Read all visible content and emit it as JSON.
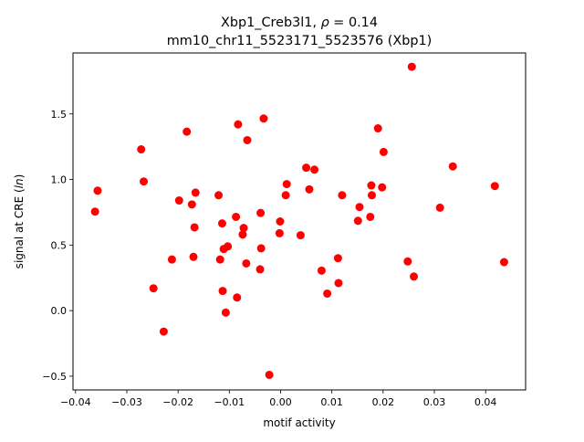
{
  "chart_data": {
    "type": "scatter",
    "title_line1": "Xbp1_Creb3l1, ",
    "title_rho": "ρ",
    "title_rho_value": " = 0.14",
    "title_line2": "mm10_chr11_5523171_5523576 (Xbp1)",
    "xlabel": "motif activity",
    "ylabel_prefix": "signal at CRE (",
    "ylabel_italic": "ln",
    "ylabel_suffix": ")",
    "xlim": [
      -0.0405,
      0.0478
    ],
    "ylim": [
      -0.605,
      1.965
    ],
    "xticks": [
      -0.04,
      -0.03,
      -0.02,
      -0.01,
      0.0,
      0.01,
      0.02,
      0.03,
      0.04
    ],
    "xtick_labels": [
      "−0.04",
      "−0.03",
      "−0.02",
      "−0.01",
      "0.00",
      "0.01",
      "0.02",
      "0.03",
      "0.04"
    ],
    "yticks": [
      -0.5,
      0.0,
      0.5,
      1.0,
      1.5
    ],
    "ytick_labels": [
      "−0.5",
      "0.0",
      "0.5",
      "1.0",
      "1.5"
    ],
    "grid": false,
    "marker_color": "#ff0000",
    "points": [
      {
        "x": -0.0362,
        "y": 0.755
      },
      {
        "x": -0.0357,
        "y": 0.915
      },
      {
        "x": -0.0272,
        "y": 1.23
      },
      {
        "x": -0.0267,
        "y": 0.985
      },
      {
        "x": -0.0248,
        "y": 0.17
      },
      {
        "x": -0.0228,
        "y": -0.16
      },
      {
        "x": -0.0212,
        "y": 0.39
      },
      {
        "x": -0.0198,
        "y": 0.84
      },
      {
        "x": -0.0183,
        "y": 1.365
      },
      {
        "x": -0.0173,
        "y": 0.81
      },
      {
        "x": -0.017,
        "y": 0.41
      },
      {
        "x": -0.0168,
        "y": 0.635
      },
      {
        "x": -0.0166,
        "y": 0.9
      },
      {
        "x": -0.0121,
        "y": 0.88
      },
      {
        "x": -0.0118,
        "y": 0.39
      },
      {
        "x": -0.0114,
        "y": 0.665
      },
      {
        "x": -0.0113,
        "y": 0.15
      },
      {
        "x": -0.0111,
        "y": 0.47
      },
      {
        "x": -0.0107,
        "y": -0.015
      },
      {
        "x": -0.0103,
        "y": 0.49
      },
      {
        "x": -0.0087,
        "y": 0.715
      },
      {
        "x": -0.0085,
        "y": 0.1
      },
      {
        "x": -0.0083,
        "y": 1.42
      },
      {
        "x": -0.0074,
        "y": 0.58
      },
      {
        "x": -0.0072,
        "y": 0.63
      },
      {
        "x": -0.0067,
        "y": 0.36
      },
      {
        "x": -0.0065,
        "y": 1.3
      },
      {
        "x": -0.004,
        "y": 0.315
      },
      {
        "x": -0.0039,
        "y": 0.745
      },
      {
        "x": -0.0038,
        "y": 0.475
      },
      {
        "x": -0.0033,
        "y": 1.465
      },
      {
        "x": -0.0022,
        "y": -0.49
      },
      {
        "x": -0.0002,
        "y": 0.59
      },
      {
        "x": -0.0001,
        "y": 0.68
      },
      {
        "x": 0.001,
        "y": 0.88
      },
      {
        "x": 0.0012,
        "y": 0.965
      },
      {
        "x": 0.0039,
        "y": 0.575
      },
      {
        "x": 0.005,
        "y": 1.09
      },
      {
        "x": 0.0056,
        "y": 0.925
      },
      {
        "x": 0.0066,
        "y": 1.075
      },
      {
        "x": 0.008,
        "y": 0.305
      },
      {
        "x": 0.0091,
        "y": 0.13
      },
      {
        "x": 0.0112,
        "y": 0.4
      },
      {
        "x": 0.0113,
        "y": 0.21
      },
      {
        "x": 0.012,
        "y": 0.88
      },
      {
        "x": 0.0151,
        "y": 0.685
      },
      {
        "x": 0.0154,
        "y": 0.79
      },
      {
        "x": 0.0175,
        "y": 0.715
      },
      {
        "x": 0.0177,
        "y": 0.955
      },
      {
        "x": 0.0178,
        "y": 0.88
      },
      {
        "x": 0.019,
        "y": 1.39
      },
      {
        "x": 0.0198,
        "y": 0.94
      },
      {
        "x": 0.0201,
        "y": 1.21
      },
      {
        "x": 0.0248,
        "y": 0.375
      },
      {
        "x": 0.0256,
        "y": 1.86
      },
      {
        "x": 0.026,
        "y": 0.26
      },
      {
        "x": 0.0311,
        "y": 0.785
      },
      {
        "x": 0.0336,
        "y": 1.1
      },
      {
        "x": 0.0418,
        "y": 0.95
      },
      {
        "x": 0.0436,
        "y": 0.37
      }
    ]
  }
}
